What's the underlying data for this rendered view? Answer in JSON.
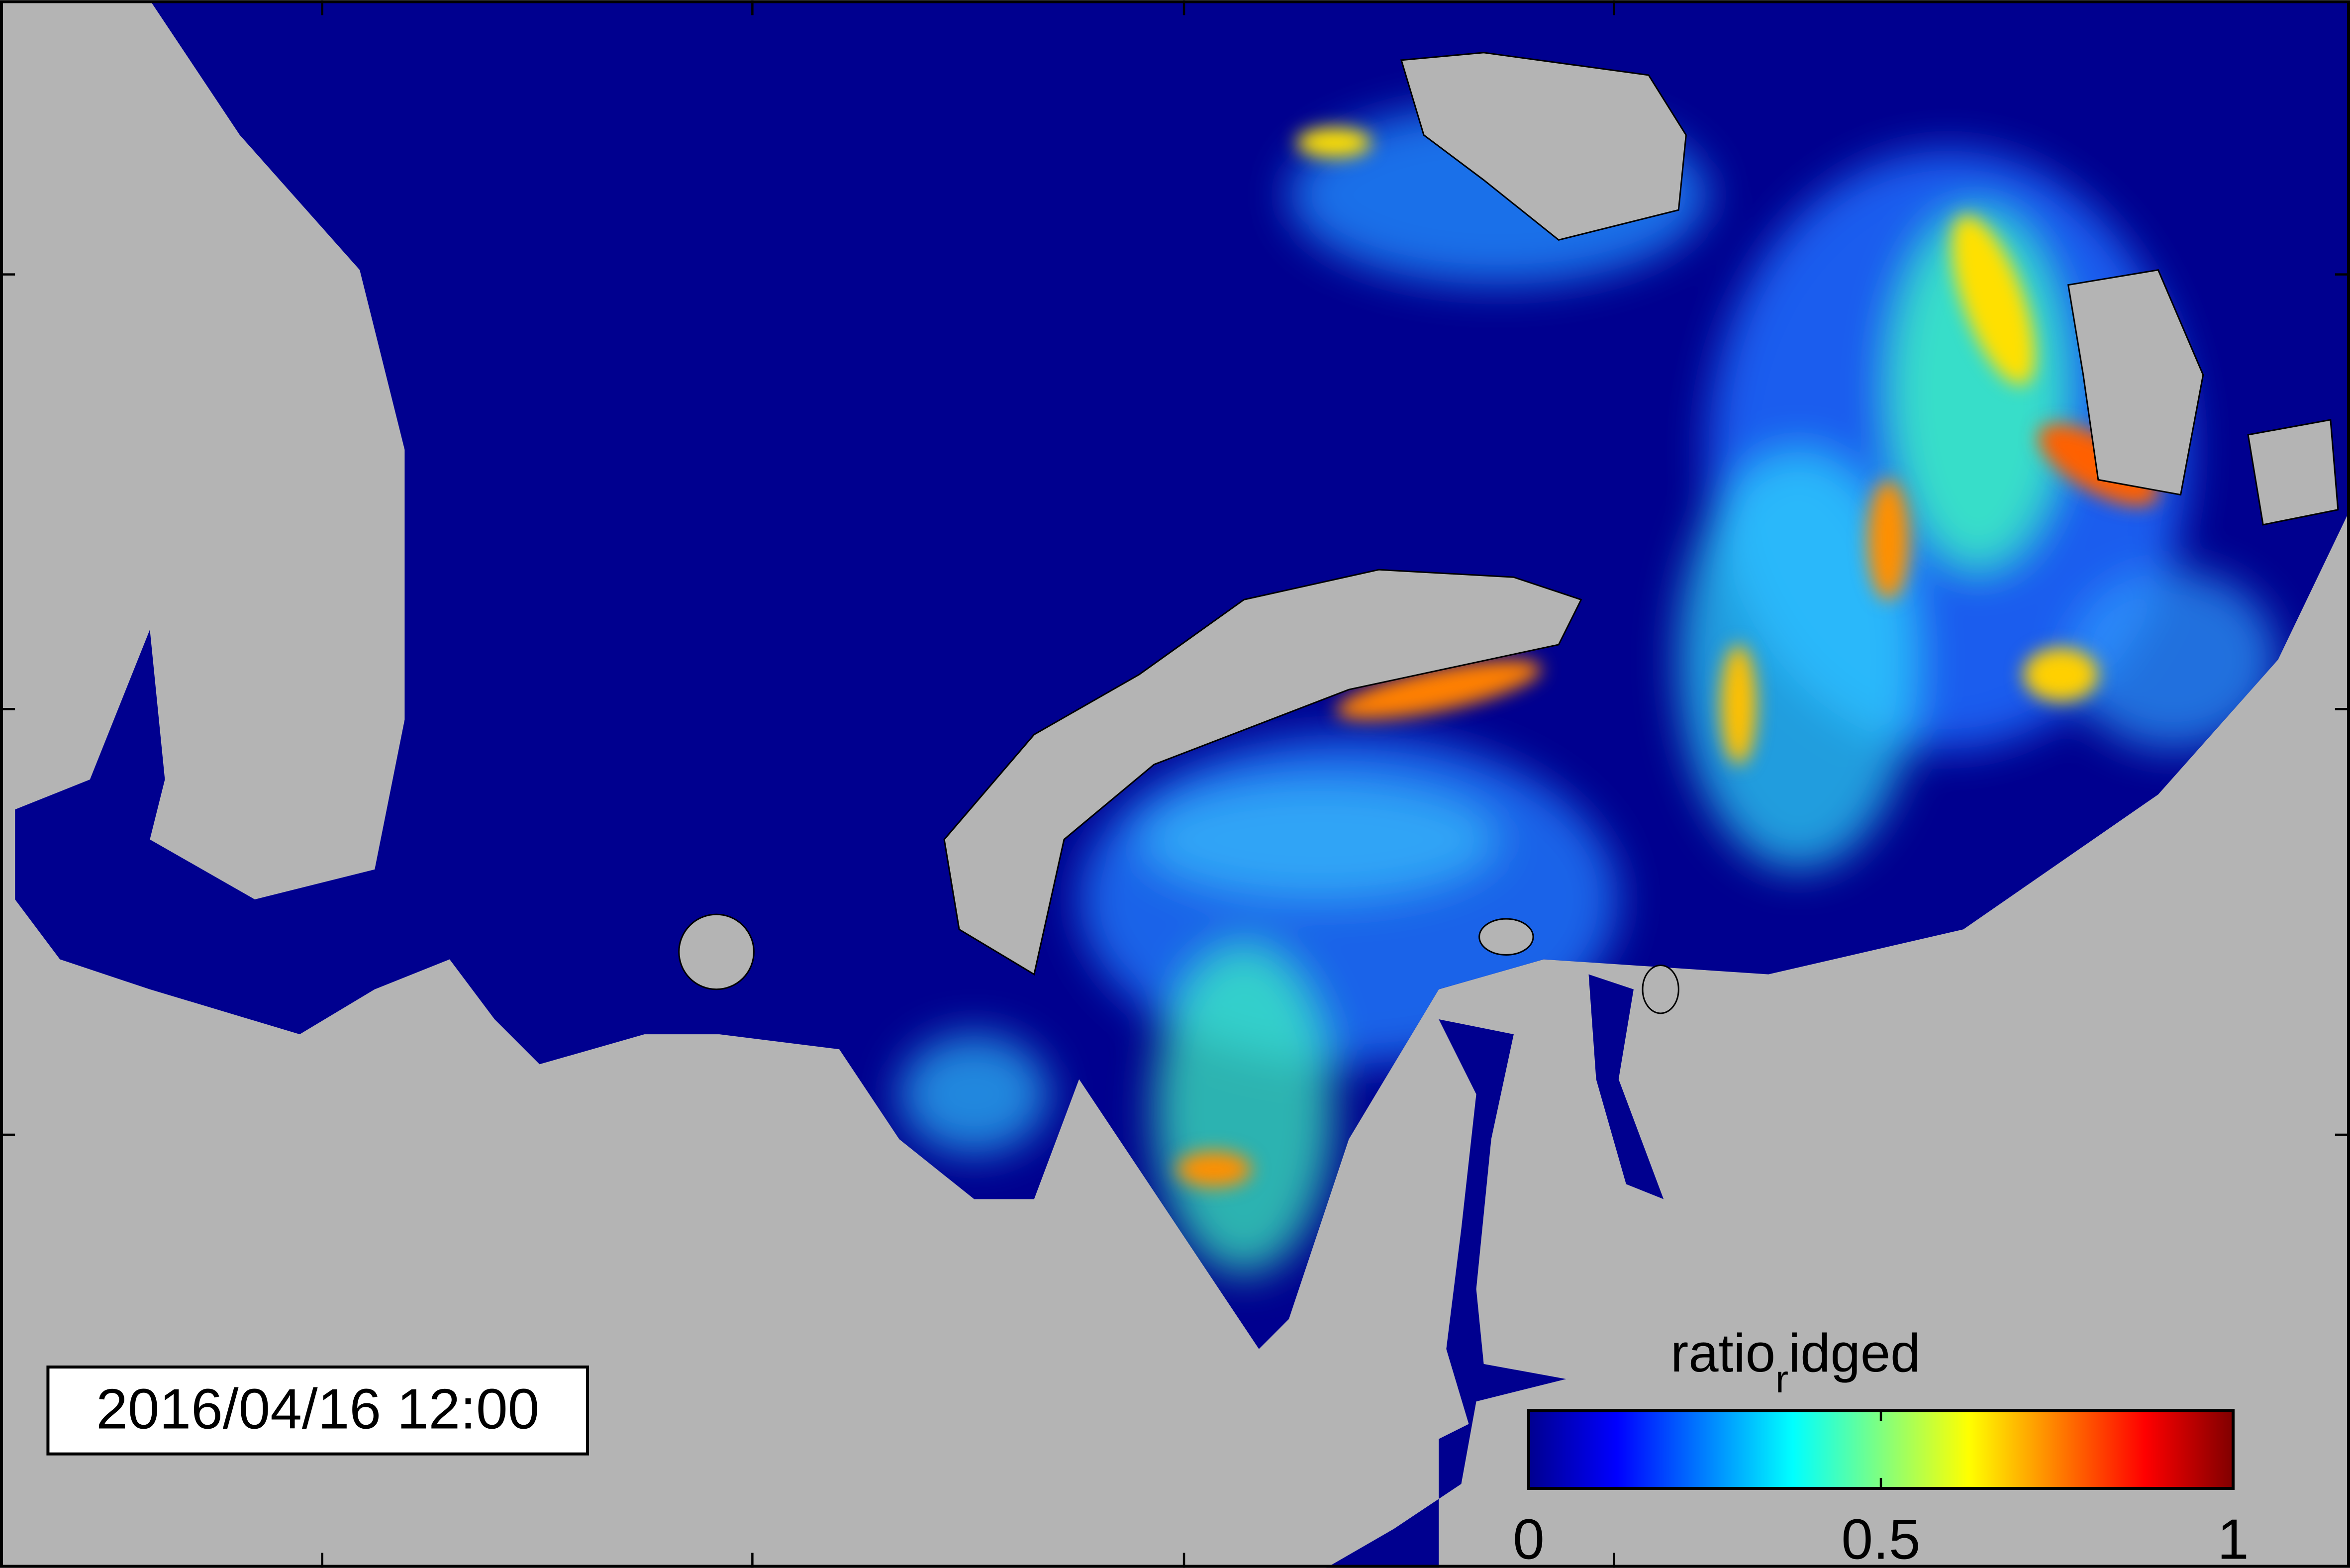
{
  "timestamp": "2016/04/16 12:00",
  "colorbar": {
    "label": {
      "base": "ratio",
      "sub": "r",
      "rest": "idged"
    },
    "clim": [
      0,
      1
    ],
    "ticks": [
      0,
      0.5,
      1
    ],
    "colormap": "jet"
  }
}
